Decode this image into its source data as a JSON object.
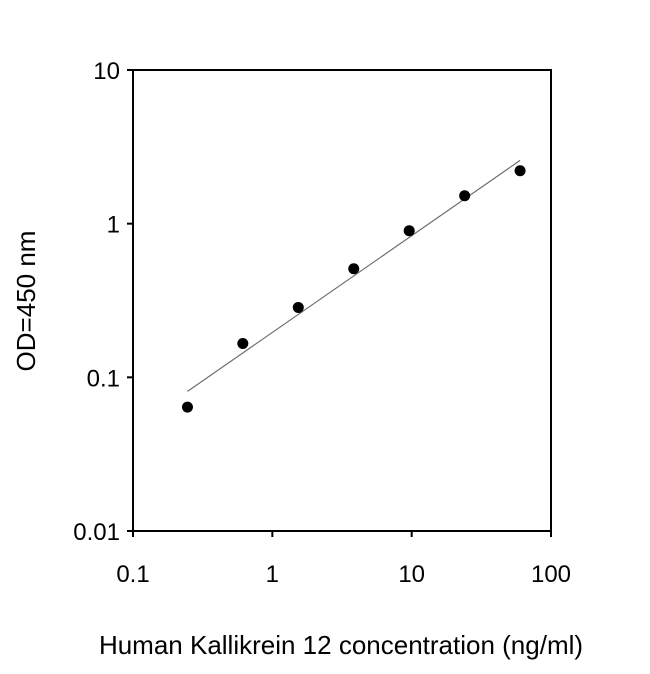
{
  "chart_data": {
    "type": "scatter",
    "title": "",
    "xlabel": "Human Kallikrein 12 concentration (ng/ml)",
    "ylabel": "OD=450 nm",
    "xscale": "log",
    "yscale": "log",
    "xlim": [
      0.1,
      100
    ],
    "ylim": [
      0.01,
      10
    ],
    "x_ticks": [
      0.1,
      1,
      10,
      100
    ],
    "x_tick_labels": [
      "0.1",
      "1",
      "10",
      "100"
    ],
    "y_ticks": [
      0.01,
      0.1,
      1,
      10
    ],
    "y_tick_labels": [
      "0.01",
      "0.1",
      "1",
      "10"
    ],
    "grid": false,
    "legend": null,
    "series": [
      {
        "name": "Standard curve data",
        "marker": "filled-circle",
        "x": [
          0.246,
          0.614,
          1.536,
          3.84,
          9.6,
          24,
          60
        ],
        "y": [
          0.064,
          0.166,
          0.285,
          0.509,
          0.9,
          1.52,
          2.21
        ]
      },
      {
        "name": "Fit line",
        "style": "line",
        "x": [
          0.246,
          60
        ],
        "y": [
          0.081,
          2.58
        ]
      }
    ]
  },
  "colors": {
    "axis": "#000000",
    "marker": "#000000",
    "fit_line": "#6e6e6e",
    "background": "#ffffff"
  }
}
